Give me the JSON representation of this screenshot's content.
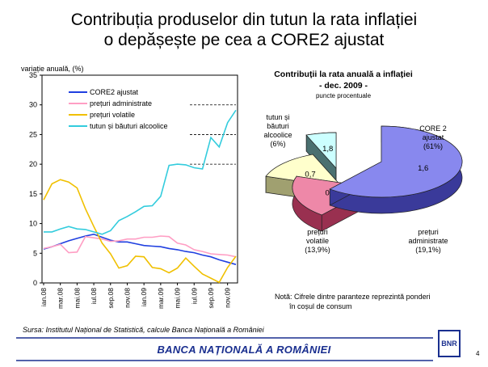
{
  "slide": {
    "title_line1": "Contribuția produselor din tutun la rata inflației",
    "title_line2": "o depășește pe cea a CORE2 ajustat",
    "source": "Sursa: Institutul Național de Statistică, calcule Banca Națională a României",
    "footer": "BANCA NAȚIONALĂ A ROMÂNIEI",
    "page_number": "4",
    "logo_text": "BNR",
    "accent_color": "#1a2f8f"
  },
  "chart_data": [
    {
      "type": "line",
      "ylabel": "variație anuală, (%)",
      "ylim": [
        0,
        35
      ],
      "yticks": [
        "0",
        "5",
        "10",
        "15",
        "20",
        "25",
        "30",
        "35"
      ],
      "xticks": [
        "ian.08",
        "mar.08",
        "mai.08",
        "iul.08",
        "sep.08",
        "nov.08",
        "ian.09",
        "mar.09",
        "mai.09",
        "iul.09",
        "sep.09",
        "nov.09"
      ],
      "x_months": 24,
      "legend_position": "top-left",
      "series": [
        {
          "name": "CORE2 ajustat",
          "color": "#1f3fe0",
          "values": [
            5.7,
            6.1,
            6.6,
            7.1,
            7.5,
            7.9,
            8.2,
            7.7,
            7.2,
            6.9,
            6.9,
            6.6,
            6.3,
            6.2,
            6.1,
            5.8,
            5.6,
            5.3,
            5.1,
            4.7,
            4.4,
            3.9,
            3.5,
            3.1
          ]
        },
        {
          "name": "prețuri administrate",
          "color": "#ff9ec4",
          "values": [
            5.8,
            6.1,
            6.5,
            5.1,
            5.2,
            7.8,
            7.6,
            7.4,
            7.0,
            7.1,
            7.4,
            7.4,
            7.7,
            7.7,
            7.9,
            7.8,
            6.7,
            6.4,
            5.6,
            5.3,
            4.9,
            4.8,
            4.7,
            4.4
          ]
        },
        {
          "name": "prețuri volatile",
          "color": "#f0c000",
          "values": [
            14.0,
            16.7,
            17.4,
            17.0,
            16.0,
            12.5,
            9.5,
            6.7,
            4.9,
            2.5,
            2.9,
            4.5,
            4.4,
            2.6,
            2.4,
            1.7,
            2.5,
            4.2,
            2.8,
            1.5,
            0.8,
            0.1,
            2.6,
            4.5
          ]
        },
        {
          "name": "tutun și băuturi alcoolice",
          "color": "#33ccdd",
          "values": [
            8.6,
            8.6,
            9.1,
            9.5,
            9.1,
            9.0,
            8.6,
            8.2,
            8.8,
            10.5,
            11.2,
            12.0,
            12.9,
            13.0,
            14.6,
            19.8,
            20.0,
            19.9,
            19.4,
            19.2,
            24.5,
            22.9,
            27.0,
            29.1
          ]
        }
      ]
    },
    {
      "type": "pie",
      "title": "Contribuții la rata anuală a inflației",
      "subtitle": "- dec. 2009 -",
      "unit": "puncte procentuale",
      "slices": [
        {
          "name_lines": [
            "CORE 2",
            "ajustat"
          ],
          "share": "(61%)",
          "value": 1.6,
          "value_label": "1,6",
          "color": "#8888ee",
          "side": "#3a3a9a",
          "percent": 61
        },
        {
          "name_lines": [
            "prețuri",
            "administrate"
          ],
          "share": "(19,1%)",
          "value": 0.6,
          "value_label": "0,6",
          "color": "#ee88a8",
          "side": "#993050",
          "percent": 19.1
        },
        {
          "name_lines": [
            "prețuri",
            "volatile"
          ],
          "share": "(13,9%)",
          "value": 0.7,
          "value_label": "0,7",
          "color": "#ffffcc",
          "side": "#a0a070",
          "percent": 13.9
        },
        {
          "name_lines": [
            "tutun și",
            "băuturi",
            "alcoolice"
          ],
          "share": "(6%)",
          "value": 1.8,
          "value_label": "1,8",
          "color": "#ccffff",
          "side": "#4a7070",
          "percent": 6
        }
      ],
      "note_line1": "Notă: Cifrele dintre paranteze reprezintă ponderi",
      "note_line2": "în coșul de consum"
    }
  ]
}
